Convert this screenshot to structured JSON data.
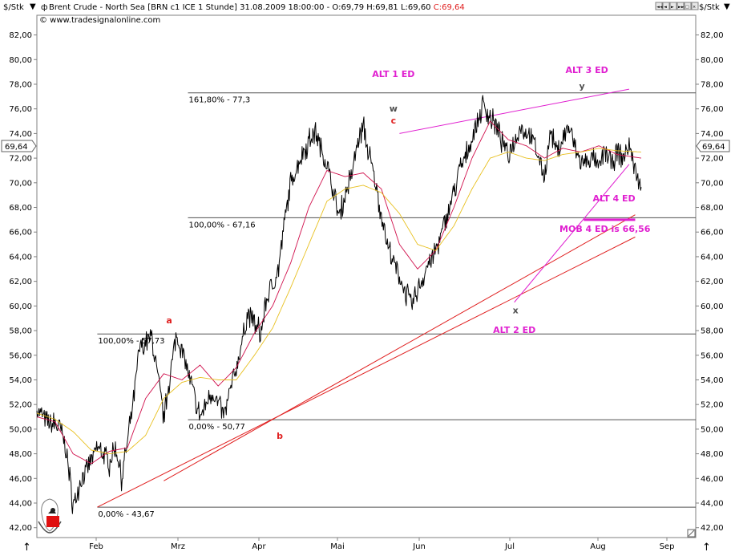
{
  "header": {
    "unit_left": "$/Stk",
    "unit_right": "$/Stk",
    "title_prefix": "Brent Crude - North Sea [BRN c1 ICE  1 Stunde] 31.08.2009 18:00:00 - O:69,79 H:69,81 L:69,60 ",
    "close_label": "C:69,64",
    "source": "© www.tradesignalonline.com",
    "nav_buttons": [
      "◄◄",
      "◄",
      "►",
      "►►",
      "□",
      "×"
    ]
  },
  "colors": {
    "price": "#000000",
    "ma_fast": "#d0104c",
    "ma_slow": "#e8c020",
    "magenta": "#e020d0",
    "red": "#e02020",
    "gray_line": "#505050",
    "grid_frame": "#808080"
  },
  "chart_data": {
    "type": "line",
    "title": "Brent Crude - North Sea [BRN c1 ICE  1 Stunde]",
    "xlabel": "",
    "ylabel": "$/Stk",
    "ylim": [
      41.2,
      83.6
    ],
    "grid": false,
    "x_ticks": [
      "Feb",
      "Mrz",
      "Apr",
      "Mai",
      "Jun",
      "Jul",
      "Aug",
      "Sep"
    ],
    "y_ticks": [
      "42,00",
      "44,00",
      "46,00",
      "48,00",
      "50,00",
      "52,00",
      "54,00",
      "56,00",
      "58,00",
      "60,00",
      "62,00",
      "64,00",
      "66,00",
      "68,00",
      "70,00",
      "72,00",
      "74,00",
      "76,00",
      "78,00",
      "80,00",
      "82,00"
    ],
    "y_tick_values": [
      42,
      44,
      46,
      48,
      50,
      52,
      54,
      56,
      58,
      60,
      62,
      64,
      66,
      68,
      70,
      72,
      74,
      76,
      78,
      80,
      82
    ],
    "last_price_label": "69,64",
    "last_price": 69.64,
    "series": [
      {
        "name": "Price",
        "x": [
          0,
          2,
          4,
          5,
          6,
          7,
          9,
          10,
          12,
          13,
          14,
          15,
          16,
          17,
          19,
          21,
          23,
          24,
          25,
          27,
          29,
          31,
          33,
          35,
          36,
          37,
          38,
          40,
          41,
          42,
          44,
          46,
          48,
          50,
          52,
          53,
          54,
          56,
          58,
          60,
          62,
          64,
          66,
          68,
          70,
          72,
          74,
          75,
          76,
          78,
          80,
          82,
          84,
          85,
          86,
          88,
          89,
          90,
          92,
          93,
          94,
          95,
          96,
          97,
          98,
          99,
          100
        ],
        "values": [
          51.5,
          50.5,
          50.0,
          47.8,
          43.7,
          45.5,
          47.5,
          48.5,
          47.2,
          48.8,
          46.0,
          49.0,
          52.5,
          56.6,
          57.5,
          51.0,
          57.6,
          56.5,
          54.5,
          51.0,
          53.0,
          51.2,
          55.0,
          59.5,
          58.5,
          57.8,
          60.5,
          63.0,
          67.0,
          70.0,
          72.5,
          74.2,
          71.5,
          67.3,
          70.5,
          73.0,
          74.5,
          70.0,
          65.0,
          62.3,
          60.0,
          62.5,
          64.5,
          67.5,
          71.0,
          73.5,
          76.5,
          75.3,
          74.5,
          72.3,
          74.5,
          73.5,
          70.5,
          74.3,
          72.5,
          74.5,
          73.0,
          71.5,
          72.0,
          71.0,
          72.8,
          71.5,
          72.5,
          72.0,
          73.0,
          71.0,
          69.64
        ]
      },
      {
        "name": "MA fast",
        "x": [
          0,
          3,
          6,
          9,
          12,
          15,
          18,
          21,
          24,
          27,
          30,
          33,
          36,
          39,
          42,
          45,
          48,
          51,
          54,
          57,
          60,
          63,
          66,
          69,
          72,
          75,
          78,
          81,
          84,
          87,
          90,
          93,
          96,
          100
        ],
        "values": [
          51.0,
          50.6,
          48.0,
          47.2,
          48.2,
          48.5,
          52.5,
          54.5,
          54.0,
          55.2,
          53.5,
          55.0,
          57.8,
          60.0,
          63.5,
          68.0,
          71.0,
          70.5,
          70.8,
          69.5,
          65.0,
          63.0,
          64.5,
          68.0,
          72.0,
          75.0,
          73.5,
          73.0,
          72.0,
          72.8,
          72.5,
          73.0,
          72.3,
          72.0
        ]
      },
      {
        "name": "MA slow",
        "x": [
          0,
          3,
          6,
          9,
          12,
          15,
          18,
          21,
          24,
          27,
          30,
          33,
          36,
          39,
          42,
          45,
          48,
          51,
          54,
          57,
          60,
          63,
          66,
          69,
          72,
          75,
          78,
          81,
          84,
          87,
          90,
          93,
          96,
          100
        ],
        "values": [
          51.3,
          50.8,
          49.8,
          48.3,
          48.0,
          48.2,
          49.5,
          52.5,
          53.8,
          54.2,
          54.0,
          54.0,
          56.0,
          58.2,
          61.5,
          65.0,
          68.5,
          69.5,
          69.8,
          69.2,
          67.5,
          65.0,
          64.5,
          66.5,
          69.5,
          72.0,
          72.5,
          72.0,
          71.8,
          72.3,
          72.5,
          72.8,
          72.6,
          72.5
        ]
      }
    ],
    "fib_levels": [
      {
        "label": "161,80% - 77,3",
        "value": 77.3,
        "x_start": 25
      },
      {
        "label": "100,00% - 67,16",
        "value": 67.16,
        "x_start": 25
      },
      {
        "label": "100,00% - 57,73",
        "value": 57.73,
        "x_start": 10
      },
      {
        "label": "0,00% - 50,77",
        "value": 50.77,
        "x_start": 25
      },
      {
        "label": "0,00% - 43,67",
        "value": 43.67,
        "x_start": 10
      }
    ],
    "trend_lines": [
      {
        "name": "red-trendline-1",
        "x1": 10,
        "y1": 43.67,
        "x2": 99,
        "y2": 65.6,
        "color": "red"
      },
      {
        "name": "red-trendline-2",
        "x1": 21,
        "y1": 45.8,
        "x2": 99,
        "y2": 67.4,
        "color": "red"
      },
      {
        "name": "magenta-top-line",
        "x1": 60,
        "y1": 74.0,
        "x2": 98,
        "y2": 77.6,
        "color": "magenta"
      },
      {
        "name": "magenta-wedge-line",
        "x1": 79,
        "y1": 60.3,
        "x2": 98,
        "y2": 71.5,
        "color": "magenta"
      }
    ],
    "annotations": [
      {
        "name": "label-alt1-ed",
        "text": "ALT 1 ED",
        "x": 59,
        "y": 78.6,
        "color": "magenta"
      },
      {
        "name": "label-alt3-ed",
        "text": "ALT 3 ED",
        "x": 91,
        "y": 78.9,
        "color": "magenta"
      },
      {
        "name": "label-alt4-ed",
        "text": "ALT 4 ED",
        "x": 95.5,
        "y": 68.5,
        "color": "magenta"
      },
      {
        "name": "label-mob-4-ed",
        "text": "MOB 4 ED is 66,56",
        "x": 94,
        "y": 66.0,
        "color": "magenta"
      },
      {
        "name": "label-alt2-ed",
        "text": "ALT 2 ED",
        "x": 79,
        "y": 57.8,
        "color": "magenta"
      },
      {
        "name": "label-w",
        "text": "w",
        "x": 59,
        "y": 75.8,
        "color": "gray"
      },
      {
        "name": "label-c",
        "text": "c",
        "x": 59,
        "y": 74.8,
        "color": "red"
      },
      {
        "name": "label-y",
        "text": "y",
        "x": 90.2,
        "y": 77.6,
        "color": "gray"
      },
      {
        "name": "label-x",
        "text": "x",
        "x": 79.2,
        "y": 59.4,
        "color": "gray"
      },
      {
        "name": "label-a",
        "text": "a",
        "x": 21.9,
        "y": 58.6,
        "color": "red"
      },
      {
        "name": "label-b",
        "text": "b",
        "x": 40.2,
        "y": 49.2,
        "color": "red"
      }
    ],
    "mob_bar": {
      "x1": 90.5,
      "x2": 99,
      "value": 67.0
    }
  }
}
